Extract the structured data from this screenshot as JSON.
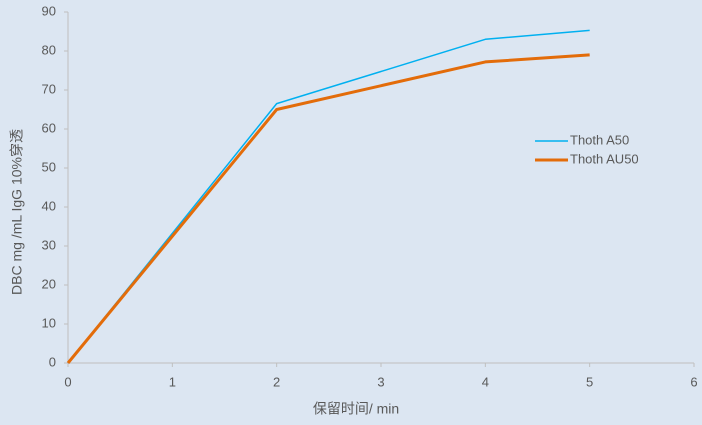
{
  "chart_data": {
    "type": "line",
    "x_label": "保留时间/ min",
    "y_label": "DBC mg /mL IgG  10%穿透",
    "xlim": [
      0,
      6
    ],
    "xticks": [
      0,
      1,
      2,
      3,
      4,
      5,
      6
    ],
    "ylim": [
      0,
      90
    ],
    "yticks": [
      0,
      10,
      20,
      30,
      40,
      50,
      60,
      70,
      80,
      90
    ],
    "grid": false,
    "legend": "right",
    "series": [
      {
        "name": "Thoth A50",
        "color": "#00b0f0",
        "width": 1.5,
        "x": [
          0,
          2,
          4,
          5
        ],
        "values": [
          0,
          66.5,
          83,
          85.3
        ]
      },
      {
        "name": "Thoth AU50",
        "color": "#e36c0a",
        "width": 3,
        "x": [
          0,
          2,
          4,
          5
        ],
        "values": [
          0,
          65,
          77.2,
          79
        ]
      }
    ]
  }
}
